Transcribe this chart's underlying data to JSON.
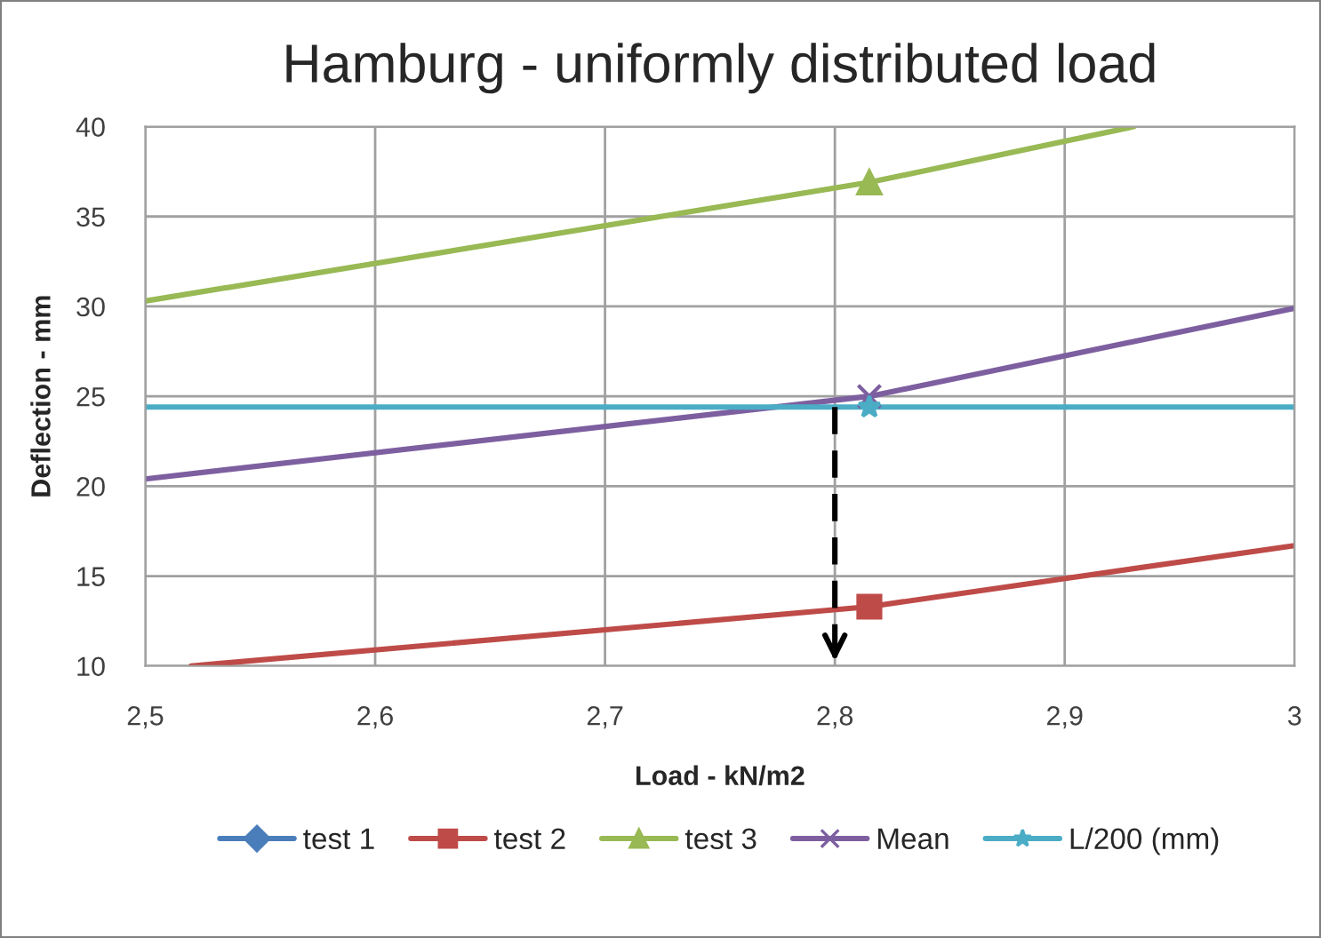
{
  "chart_data": {
    "type": "line",
    "title": "Hamburg - uniformly distributed load",
    "xlabel": "Load - kN/m2",
    "ylabel": "Deflection - mm",
    "xlim": [
      2.5,
      3
    ],
    "xticks": [
      {
        "value": 2.5,
        "label": "2,5"
      },
      {
        "value": 2.6,
        "label": "2,6"
      },
      {
        "value": 2.7,
        "label": "2,7"
      },
      {
        "value": 2.8,
        "label": "2,8"
      },
      {
        "value": 2.9,
        "label": "2,9"
      },
      {
        "value": 3,
        "label": "3"
      }
    ],
    "ylim": [
      10,
      40
    ],
    "yticks": [
      10,
      15,
      20,
      25,
      30,
      35,
      40
    ],
    "grid": true,
    "legend": "bottom",
    "series": [
      {
        "color": "#be4b48",
        "marker": "none",
        "x": [
          2.52,
          2.815,
          3
        ],
        "values": [
          10,
          13.3,
          16.7
        ]
      },
      {
        "color": "#98b954",
        "marker": "none",
        "x": [
          2.5,
          2.815,
          2.93
        ],
        "values": [
          30.3,
          36.9,
          40
        ]
      },
      {
        "color": "#7d5fa0",
        "marker": "none",
        "x": [
          2.5,
          2.815,
          3
        ],
        "values": [
          20.4,
          25,
          29.9
        ]
      },
      {
        "color": "#4bacc6",
        "marker": "none",
        "x": [
          2.5,
          2.815,
          3
        ],
        "values": [
          24.4,
          24.4,
          24.4
        ]
      },
      {
        "color": "#000000",
        "marker": "none",
        "line_style": "dashed",
        "x": [
          2.8,
          2.8
        ],
        "values": [
          24.4,
          10
        ]
      },
      {
        "name": "test 1",
        "color": "#4a7ebb",
        "marker": "diamond"
      },
      {
        "name": "test 2",
        "color": "#be4b48",
        "marker": "square",
        "x": [
          2.815
        ],
        "values": [
          13.3
        ]
      },
      {
        "name": "test 3",
        "color": "#98b954",
        "marker": "triangle",
        "x": [
          2.815
        ],
        "values": [
          36.9
        ]
      },
      {
        "name": "Mean",
        "color": "#7d5fa0",
        "marker": "cross",
        "x": [
          2.815
        ],
        "values": [
          25
        ]
      },
      {
        "name": "L/200 (mm)",
        "color": "#4bacc6",
        "marker": "star",
        "x": [
          2.815
        ],
        "values": [
          24.4
        ]
      }
    ]
  }
}
